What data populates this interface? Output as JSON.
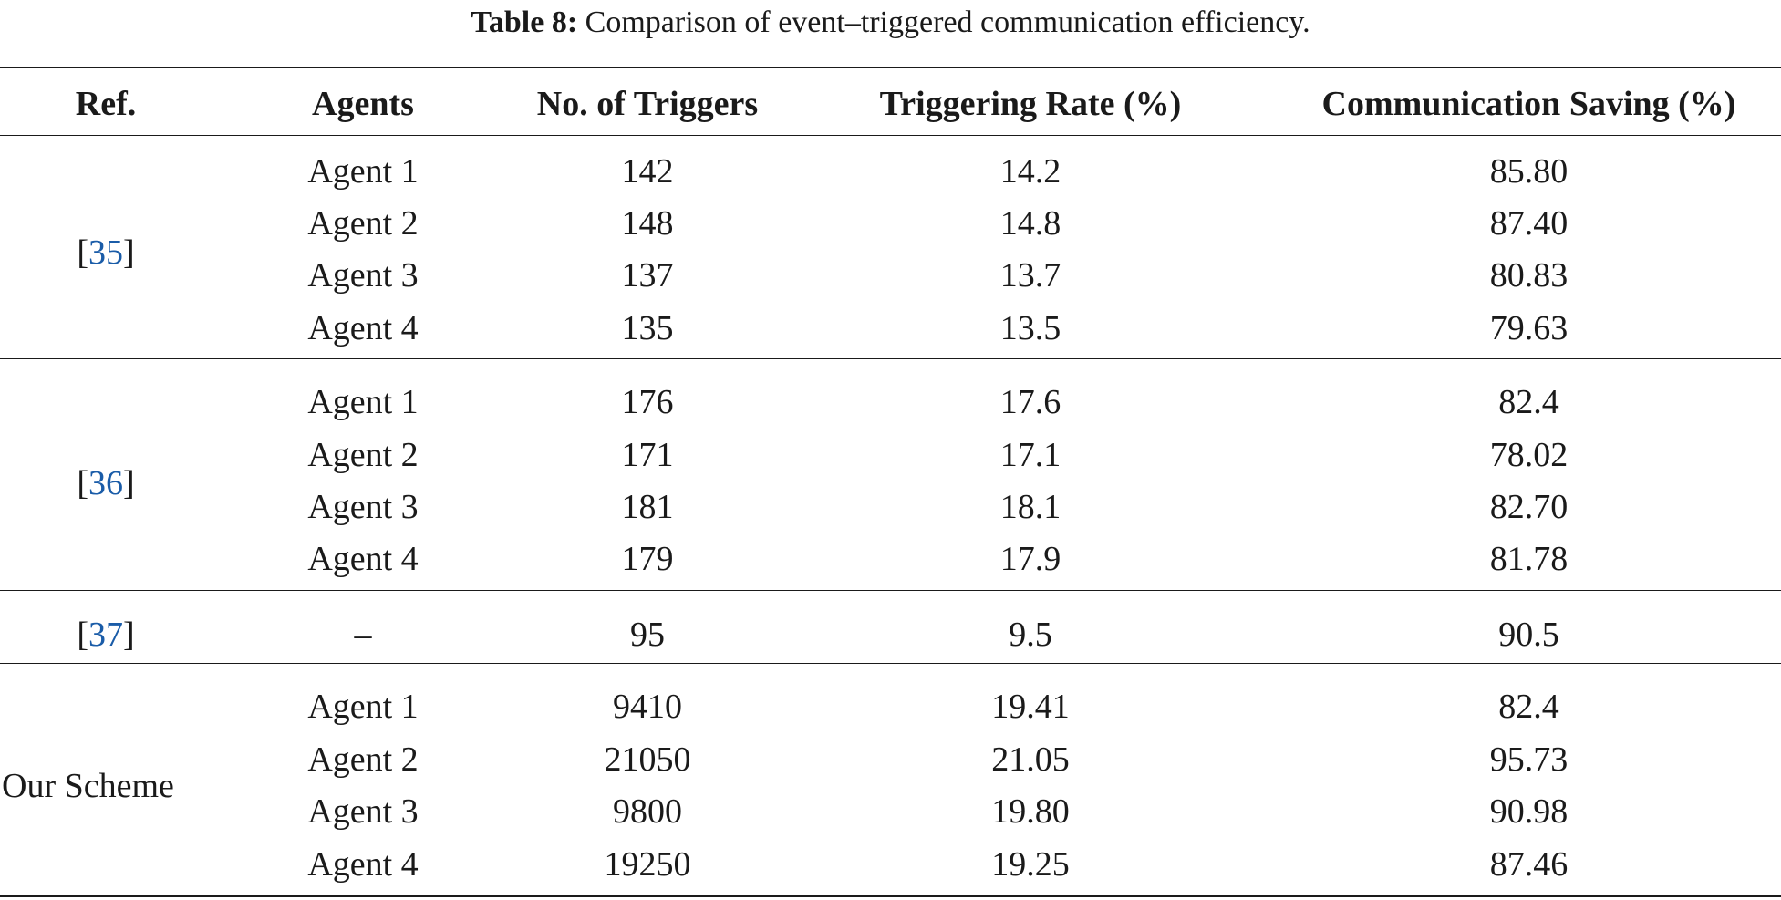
{
  "caption": {
    "label": "Table 8:",
    "text": "Comparison of event–triggered communication efficiency."
  },
  "headers": {
    "ref": "Ref.",
    "agents": "Agents",
    "triggers": "No. of Triggers",
    "rate": "Triggering Rate (%)",
    "saving": "Communication Saving (%)"
  },
  "groups": [
    {
      "ref_open": "[",
      "ref_num": "35",
      "ref_close": "]",
      "rows": [
        {
          "agent": "Agent 1",
          "triggers": "142",
          "rate": "14.2",
          "saving": "85.80"
        },
        {
          "agent": "Agent 2",
          "triggers": "148",
          "rate": "14.8",
          "saving": "87.40"
        },
        {
          "agent": "Agent 3",
          "triggers": "137",
          "rate": "13.7",
          "saving": "80.83"
        },
        {
          "agent": "Agent 4",
          "triggers": "135",
          "rate": "13.5",
          "saving": "79.63"
        }
      ]
    },
    {
      "ref_open": "[",
      "ref_num": "36",
      "ref_close": "]",
      "rows": [
        {
          "agent": "Agent 1",
          "triggers": "176",
          "rate": "17.6",
          "saving": "82.4"
        },
        {
          "agent": "Agent 2",
          "triggers": "171",
          "rate": "17.1",
          "saving": "78.02"
        },
        {
          "agent": "Agent 3",
          "triggers": "181",
          "rate": "18.1",
          "saving": "82.70"
        },
        {
          "agent": "Agent 4",
          "triggers": "179",
          "rate": "17.9",
          "saving": "81.78"
        }
      ]
    },
    {
      "ref_open": "[",
      "ref_num": "37",
      "ref_close": "]",
      "rows": [
        {
          "agent": "–",
          "triggers": "95",
          "rate": "9.5",
          "saving": "90.5"
        }
      ]
    },
    {
      "ref_text": "Our Scheme",
      "rows": [
        {
          "agent": "Agent 1",
          "triggers": "9410",
          "rate": "19.41",
          "saving": "82.4"
        },
        {
          "agent": "Agent 2",
          "triggers": "21050",
          "rate": "21.05",
          "saving": "95.73"
        },
        {
          "agent": "Agent 3",
          "triggers": "9800",
          "rate": "19.80",
          "saving": "90.98"
        },
        {
          "agent": "Agent 4",
          "triggers": "19250",
          "rate": "19.25",
          "saving": "87.46"
        }
      ]
    }
  ],
  "colors": {
    "text": "#1a1a1a",
    "link": "#1a5ca8",
    "rule": "#1a1a1a"
  }
}
